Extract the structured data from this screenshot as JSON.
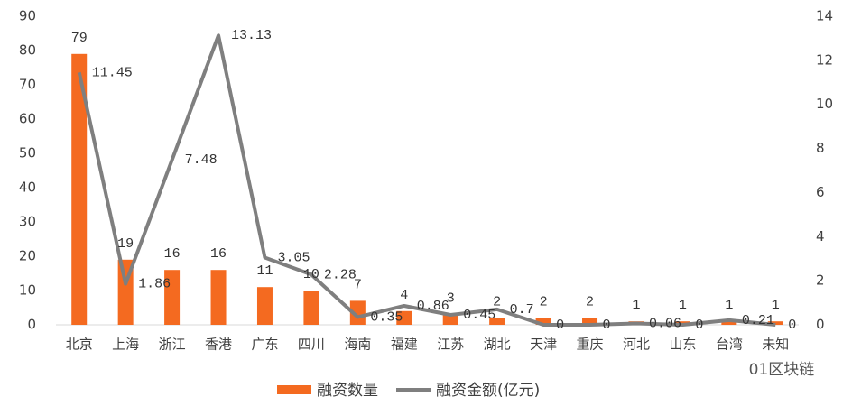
{
  "chart_data": {
    "type": "bar",
    "categories": [
      "北京",
      "上海",
      "浙江",
      "香港",
      "广东",
      "四川",
      "海南",
      "福建",
      "江苏",
      "湖北",
      "天津",
      "重庆",
      "河北",
      "山东",
      "台湾",
      "未知"
    ],
    "series": [
      {
        "name": "融资数量",
        "type": "bar",
        "color": "#f46a20",
        "values": [
          79,
          19,
          16,
          16,
          11,
          10,
          7,
          4,
          3,
          2,
          2,
          2,
          1,
          1,
          1,
          1
        ]
      },
      {
        "name": "融资金额(亿元)",
        "type": "line",
        "axis": "y2",
        "color": "#7f7f7f",
        "values": [
          11.45,
          1.86,
          7.48,
          13.13,
          3.05,
          2.28,
          0.35,
          0.86,
          0.45,
          0.7,
          0,
          0,
          0.06,
          0,
          0.21,
          0
        ]
      }
    ],
    "ylim": [
      0,
      90
    ],
    "yticks": [
      0,
      10,
      20,
      30,
      40,
      50,
      60,
      70,
      80,
      90
    ],
    "y2lim": [
      0,
      14
    ],
    "y2ticks": [
      0,
      2,
      4,
      6,
      8,
      10,
      12,
      14
    ],
    "legend": "bottom"
  },
  "watermark": "01区块链"
}
